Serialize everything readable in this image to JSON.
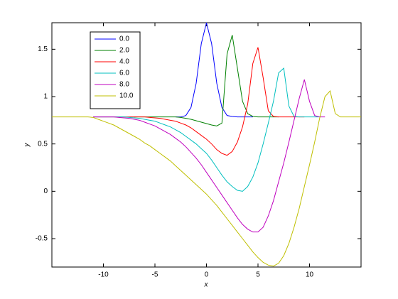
{
  "chart_data": {
    "type": "line",
    "xlabel": "x",
    "ylabel": "y",
    "xlim": [
      -15,
      15
    ],
    "ylim": [
      -0.8,
      1.78
    ],
    "xticks": [
      -10,
      -5,
      0,
      5,
      10
    ],
    "yticks": [
      -0.5,
      0,
      0.5,
      1,
      1.5
    ],
    "legend": "upper left",
    "x": [
      -15,
      -14.5,
      -14,
      -13.5,
      -13,
      -12.5,
      -12,
      -11.5,
      -11,
      -10.5,
      -10,
      -9.5,
      -9,
      -8.5,
      -8,
      -7.5,
      -7,
      -6.5,
      -6,
      -5.5,
      -5,
      -4.5,
      -4,
      -3.5,
      -3,
      -2.5,
      -2,
      -1.5,
      -1,
      -0.5,
      0,
      0.5,
      1,
      1.5,
      2,
      2.5,
      3,
      3.5,
      4,
      4.5,
      5,
      5.5,
      6,
      6.5,
      7,
      7.5,
      8,
      8.5,
      9,
      9.5,
      10,
      10.5,
      11,
      11.5,
      12,
      12.5,
      13,
      13.5,
      14,
      14.5,
      15
    ],
    "series": [
      {
        "name": "0.0",
        "color": "#0000ff",
        "values": [
          null,
          null,
          null,
          null,
          null,
          null,
          null,
          null,
          null,
          null,
          null,
          null,
          null,
          null,
          null,
          null,
          null,
          null,
          null,
          null,
          null,
          null,
          null,
          null,
          0.785,
          0.785,
          0.8,
          0.885,
          1.14,
          1.56,
          1.78,
          1.56,
          1.14,
          0.885,
          0.8,
          0.79,
          0.785,
          0.785,
          0.785,
          0.785,
          null,
          null,
          null,
          null,
          null,
          null,
          null,
          null,
          null,
          null,
          null,
          null,
          null,
          null,
          null,
          null,
          null,
          null,
          null,
          null,
          null
        ]
      },
      {
        "name": "2.0",
        "color": "#008000",
        "values": [
          null,
          null,
          null,
          null,
          null,
          null,
          null,
          null,
          null,
          null,
          null,
          null,
          null,
          null,
          null,
          null,
          0.785,
          0.785,
          0.785,
          0.785,
          0.785,
          0.785,
          0.785,
          0.785,
          0.785,
          0.78,
          0.77,
          0.76,
          0.745,
          0.73,
          0.715,
          0.7,
          0.69,
          0.72,
          1.45,
          1.65,
          1.3,
          0.95,
          0.82,
          0.79,
          0.785,
          0.785,
          0.785,
          0.785,
          0.785,
          null,
          null,
          null,
          null,
          null,
          null,
          null,
          null,
          null,
          null,
          null,
          null,
          null,
          null,
          null,
          null
        ]
      },
      {
        "name": "4.0",
        "color": "#ff0000",
        "values": [
          null,
          null,
          null,
          null,
          null,
          null,
          null,
          null,
          0.785,
          0.785,
          0.785,
          0.785,
          0.785,
          0.785,
          0.785,
          0.785,
          0.785,
          0.785,
          0.785,
          0.78,
          0.775,
          0.77,
          0.76,
          0.75,
          0.74,
          0.72,
          0.7,
          0.67,
          0.63,
          0.59,
          0.55,
          0.5,
          0.44,
          0.4,
          0.38,
          0.42,
          0.52,
          0.68,
          0.92,
          1.35,
          1.52,
          1.2,
          0.85,
          0.79,
          0.785,
          0.785,
          0.785,
          0.785,
          0.785,
          0.785,
          null,
          null,
          null,
          null,
          null,
          null,
          null,
          null,
          null,
          null,
          null
        ]
      },
      {
        "name": "6.0",
        "color": "#00bfbf",
        "values": [
          null,
          null,
          null,
          null,
          null,
          null,
          null,
          null,
          0.785,
          0.785,
          0.785,
          0.785,
          0.785,
          0.785,
          0.785,
          0.78,
          0.775,
          0.77,
          0.76,
          0.75,
          0.74,
          0.72,
          0.7,
          0.68,
          0.65,
          0.62,
          0.58,
          0.54,
          0.5,
          0.45,
          0.4,
          0.33,
          0.25,
          0.17,
          0.1,
          0.05,
          0.01,
          0.0,
          0.05,
          0.15,
          0.3,
          0.5,
          0.72,
          0.95,
          1.25,
          1.3,
          0.9,
          0.79,
          0.785,
          0.785,
          0.785,
          0.785,
          0.785,
          null,
          null,
          null,
          null,
          null,
          null,
          null,
          null
        ]
      },
      {
        "name": "8.0",
        "color": "#bf00bf",
        "values": [
          null,
          null,
          null,
          null,
          null,
          null,
          null,
          null,
          0.785,
          0.785,
          0.785,
          0.785,
          0.785,
          0.78,
          0.775,
          0.77,
          0.76,
          0.75,
          0.73,
          0.71,
          0.69,
          0.66,
          0.63,
          0.6,
          0.56,
          0.52,
          0.47,
          0.41,
          0.35,
          0.28,
          0.2,
          0.12,
          0.04,
          -0.04,
          -0.12,
          -0.2,
          -0.28,
          -0.35,
          -0.4,
          -0.43,
          -0.43,
          -0.38,
          -0.26,
          -0.1,
          0.1,
          0.3,
          0.52,
          0.75,
          0.98,
          1.18,
          0.95,
          0.8,
          0.785,
          0.785,
          null,
          null,
          null,
          null,
          null,
          null,
          null
        ]
      },
      {
        "name": "10.0",
        "color": "#bfbf00",
        "values": [
          0.785,
          0.785,
          0.785,
          0.785,
          0.785,
          0.785,
          0.785,
          0.785,
          0.78,
          0.76,
          0.74,
          0.72,
          0.7,
          0.67,
          0.64,
          0.61,
          0.58,
          0.55,
          0.51,
          0.48,
          0.44,
          0.4,
          0.36,
          0.32,
          0.27,
          0.22,
          0.17,
          0.12,
          0.07,
          0.02,
          -0.03,
          -0.09,
          -0.15,
          -0.22,
          -0.29,
          -0.36,
          -0.43,
          -0.5,
          -0.57,
          -0.64,
          -0.7,
          -0.75,
          -0.78,
          -0.79,
          -0.76,
          -0.68,
          -0.55,
          -0.38,
          -0.18,
          0.05,
          0.28,
          0.52,
          0.78,
          1.0,
          1.06,
          0.82,
          0.785,
          0.785,
          0.785,
          0.785,
          0.785
        ]
      }
    ]
  }
}
